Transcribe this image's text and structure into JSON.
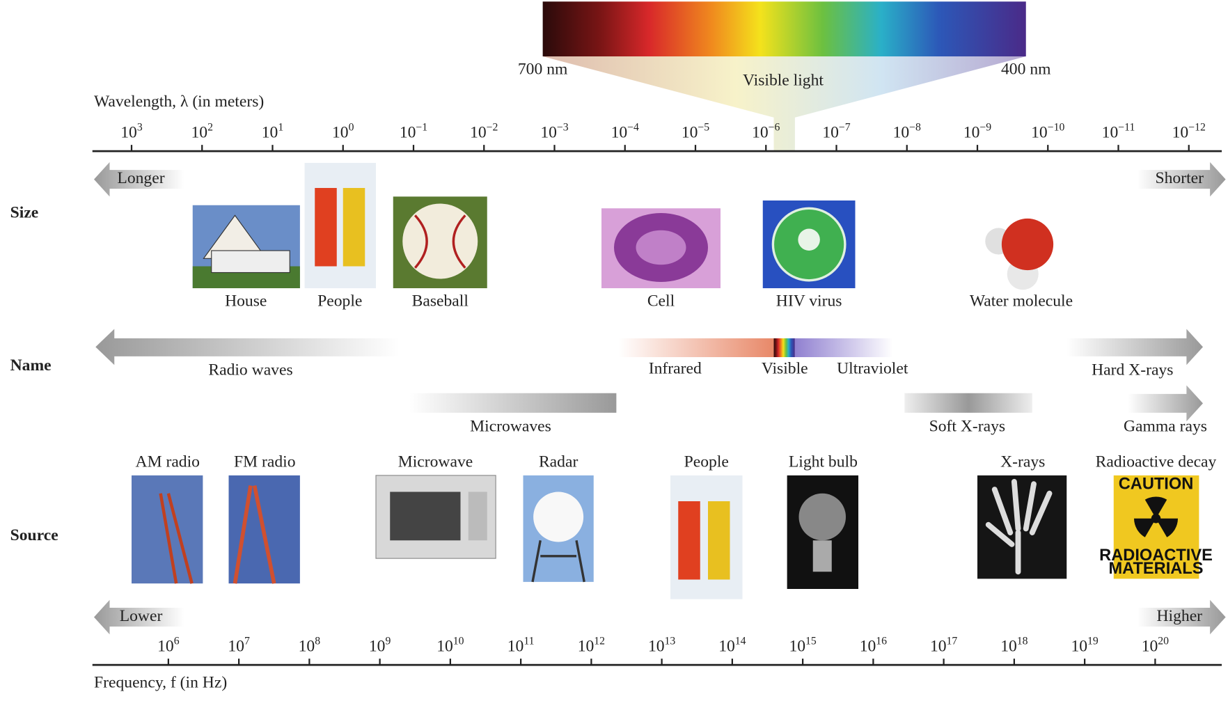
{
  "spectrum": {
    "long_label": "700 nm",
    "short_label": "400 nm",
    "title": "Visible light"
  },
  "wavelength_axis": {
    "title": "Wavelength, λ (in meters)",
    "ticks": [
      {
        "base": "10",
        "exponent": "3"
      },
      {
        "base": "10",
        "exponent": "2"
      },
      {
        "base": "10",
        "exponent": "1"
      },
      {
        "base": "10",
        "exponent": "0"
      },
      {
        "base": "10",
        "exponent": "−1"
      },
      {
        "base": "10",
        "exponent": "−2"
      },
      {
        "base": "10",
        "exponent": "−3"
      },
      {
        "base": "10",
        "exponent": "−4"
      },
      {
        "base": "10",
        "exponent": "−5"
      },
      {
        "base": "10",
        "exponent": "−6"
      },
      {
        "base": "10",
        "exponent": "−7"
      },
      {
        "base": "10",
        "exponent": "−8"
      },
      {
        "base": "10",
        "exponent": "−9"
      },
      {
        "base": "10",
        "exponent": "−10"
      },
      {
        "base": "10",
        "exponent": "−11"
      },
      {
        "base": "10",
        "exponent": "−12"
      }
    ]
  },
  "rows": [
    "Size",
    "Name",
    "Source"
  ],
  "size": {
    "left_arrow": "Longer",
    "right_arrow": "Shorter",
    "items": [
      "House",
      "People",
      "Baseball",
      "Cell",
      "HIV virus",
      "Water molecule"
    ]
  },
  "names": [
    "Radio waves",
    "Infrared",
    "Visible",
    "Ultraviolet",
    "Hard X-rays",
    "Microwaves",
    "Soft X-rays",
    "Gamma rays"
  ],
  "sources": {
    "items": [
      "AM radio",
      "FM radio",
      "Microwave",
      "Radar",
      "People",
      "Light bulb",
      "X-rays",
      "Radioactive decay"
    ],
    "sign": {
      "title": "CAUTION",
      "lines": [
        "RADIOACTIVE",
        "MATERIALS"
      ]
    }
  },
  "frequency_axis": {
    "title": "Frequency, f (in Hz)",
    "left_arrow": "Lower",
    "right_arrow": "Higher",
    "ticks": [
      {
        "base": "10",
        "exponent": "6"
      },
      {
        "base": "10",
        "exponent": "7"
      },
      {
        "base": "10",
        "exponent": "8"
      },
      {
        "base": "10",
        "exponent": "9"
      },
      {
        "base": "10",
        "exponent": "10"
      },
      {
        "base": "10",
        "exponent": "11"
      },
      {
        "base": "10",
        "exponent": "12"
      },
      {
        "base": "10",
        "exponent": "13"
      },
      {
        "base": "10",
        "exponent": "14"
      },
      {
        "base": "10",
        "exponent": "15"
      },
      {
        "base": "10",
        "exponent": "16"
      },
      {
        "base": "10",
        "exponent": "17"
      },
      {
        "base": "10",
        "exponent": "18"
      },
      {
        "base": "10",
        "exponent": "19"
      },
      {
        "base": "10",
        "exponent": "20"
      }
    ]
  }
}
